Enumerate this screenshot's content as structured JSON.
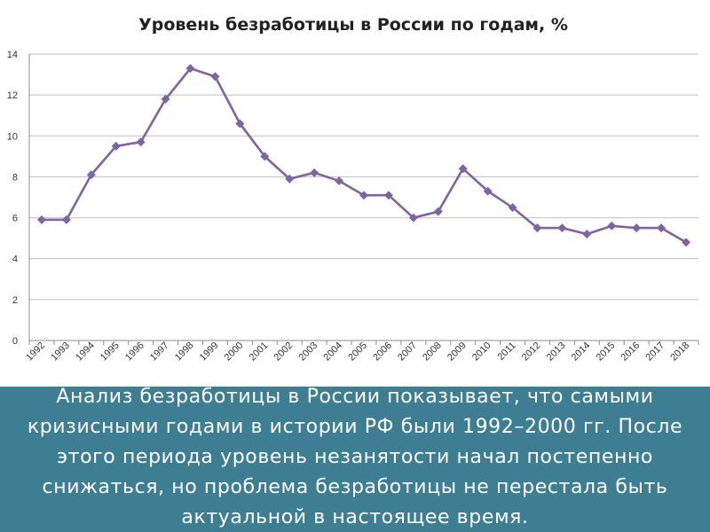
{
  "chart_data": {
    "type": "line",
    "title": "Уровень безработицы в России по годам, %",
    "categories": [
      "1992",
      "1993",
      "1994",
      "1995",
      "1996",
      "1997",
      "1998",
      "1999",
      "2000",
      "2001",
      "2002",
      "2003",
      "2004",
      "2005",
      "2006",
      "2007",
      "2008",
      "2009",
      "2010",
      "2011",
      "2012",
      "2013",
      "2014",
      "2015",
      "2016",
      "2017",
      "2018"
    ],
    "series": [
      {
        "values": [
          5.9,
          5.9,
          8.1,
          9.5,
          9.7,
          11.8,
          13.3,
          12.9,
          10.6,
          9.0,
          7.9,
          8.2,
          7.8,
          7.1,
          7.1,
          6.0,
          6.3,
          8.4,
          7.3,
          6.5,
          5.5,
          5.5,
          5.2,
          5.6,
          5.5,
          5.5,
          4.8
        ]
      }
    ],
    "ylim": [
      0,
      14
    ],
    "yticks": [
      0,
      2,
      4,
      6,
      8,
      10,
      12,
      14
    ],
    "grid": true,
    "legend": "none",
    "line_color": "#8064a2"
  },
  "caption": {
    "text": "Анализ безработицы в России показывает, что самыми кризисными годами в истории РФ были 1992–2000 гг. После этого периода уровень незанятости начал постепенно снижаться, но проблема безработицы не перестала быть актуальной в настоящее время."
  }
}
